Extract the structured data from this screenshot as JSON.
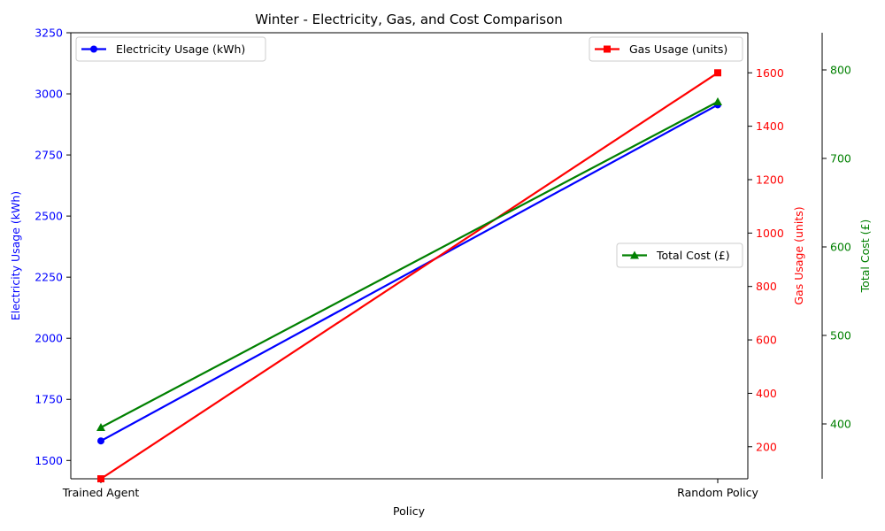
{
  "chart_data": {
    "type": "line",
    "title": "Winter - Electricity, Gas, and Cost Comparison",
    "xlabel": "Policy",
    "categories": [
      "Trained Agent",
      "Random Policy"
    ],
    "colors": {
      "electricity": "#0000ff",
      "gas": "#ff0000",
      "cost": "#008000",
      "axis": "#000000"
    },
    "axes": [
      {
        "id": "electricity",
        "label": "Electricity Usage (kWh)",
        "side": "left",
        "ylim": [
          1425,
          3250
        ],
        "ticks": [
          1500,
          1750,
          2000,
          2250,
          2500,
          2750,
          3000,
          3250
        ],
        "tick_labels": [
          "1500",
          "1750",
          "2000",
          "2250",
          "2500",
          "2750",
          "3000",
          "3250"
        ]
      },
      {
        "id": "gas",
        "label": "Gas Usage (units)",
        "side": "right",
        "ylim": [
          80,
          1750
        ],
        "ticks": [
          200,
          400,
          600,
          800,
          1000,
          1200,
          1400,
          1600
        ],
        "tick_labels": [
          "200",
          "400",
          "600",
          "800",
          "1000",
          "1200",
          "1400",
          "1600"
        ]
      },
      {
        "id": "cost",
        "label": "Total Cost (£)",
        "side": "right-outer",
        "ylim": [
          338,
          842
        ],
        "ticks": [
          400,
          500,
          600,
          700,
          800
        ],
        "tick_labels": [
          "400",
          "500",
          "600",
          "700",
          "800"
        ]
      }
    ],
    "series": [
      {
        "name": "Electricity Usage (kWh)",
        "axis": "electricity",
        "marker": "circle",
        "values": [
          1580,
          2955
        ]
      },
      {
        "name": "Gas Usage (units)",
        "axis": "gas",
        "marker": "square",
        "values": [
          80,
          1600
        ]
      },
      {
        "name": "Total Cost (£)",
        "axis": "cost",
        "marker": "triangle",
        "values": [
          396,
          764
        ]
      }
    ],
    "legends": [
      {
        "series": 0,
        "placement": "upper-left"
      },
      {
        "series": 1,
        "placement": "upper-right"
      },
      {
        "series": 2,
        "placement": "center-right"
      }
    ]
  }
}
